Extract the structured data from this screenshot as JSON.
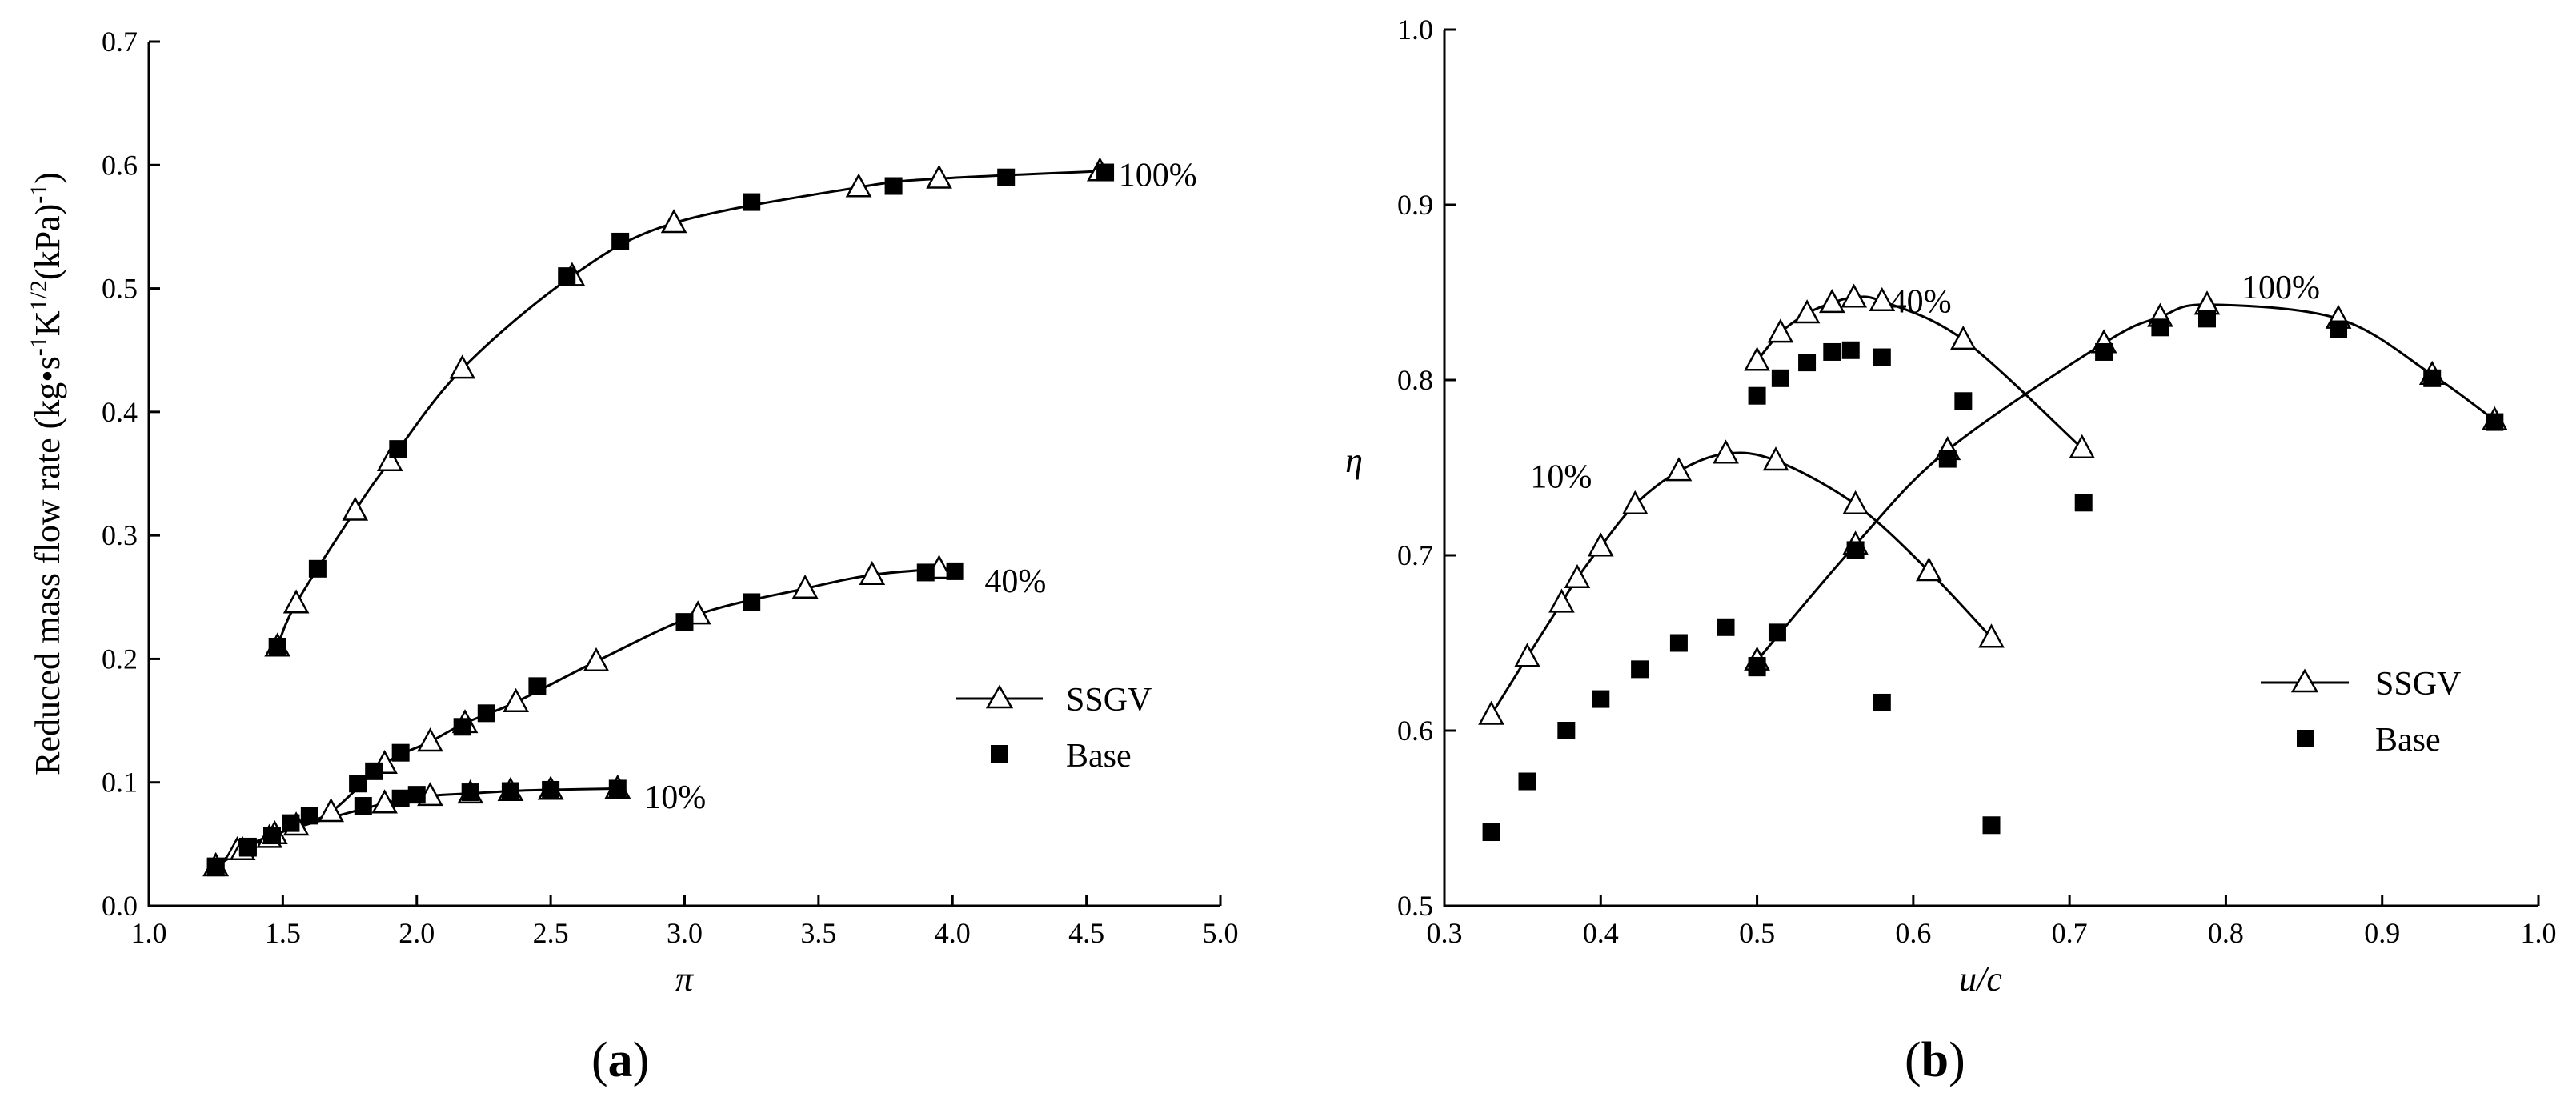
{
  "chart_data": [
    {
      "type": "line",
      "panel_label": {
        "open": "(",
        "letter": "a",
        "close": ")"
      },
      "xlabel": "π",
      "ylabel": {
        "prefix": "Reduced mass flow rate (kg•s",
        "sup1": "-1",
        "mid1": "K",
        "sup2": "1/2",
        "mid2": "(kPa)",
        "sup3": "-1",
        "suffix": ")"
      },
      "xlim": [
        1.0,
        5.0
      ],
      "ylim": [
        0.0,
        0.7
      ],
      "xticks": [
        1.0,
        1.5,
        2.0,
        2.5,
        3.0,
        3.5,
        4.0,
        4.5,
        5.0
      ],
      "yticks": [
        0.0,
        0.1,
        0.2,
        0.3,
        0.4,
        0.5,
        0.6,
        0.7
      ],
      "xtick_labels": [
        "1.0",
        "1.5",
        "2.0",
        "2.5",
        "3.0",
        "3.5",
        "4.0",
        "4.5",
        "5.0"
      ],
      "ytick_labels": [
        "0.0",
        "0.1",
        "0.2",
        "0.3",
        "0.4",
        "0.5",
        "0.6",
        "0.7"
      ],
      "grid": false,
      "legend": {
        "position": "center-right",
        "entries": [
          "SSGV",
          "Base"
        ]
      },
      "series": [
        {
          "name": "SSGV",
          "group": "100%",
          "marker": "open-triangle",
          "curve": true,
          "x": [
            1.48,
            1.55,
            1.77,
            1.9,
            2.17,
            2.58,
            2.96,
            3.65,
            3.95,
            4.55
          ],
          "y": [
            0.21,
            0.245,
            0.32,
            0.36,
            0.435,
            0.51,
            0.553,
            0.582,
            0.589,
            0.595
          ]
        },
        {
          "name": "Base",
          "group": "100%",
          "marker": "filled-square",
          "x": [
            1.48,
            1.63,
            1.93,
            2.56,
            2.76,
            3.25,
            3.78,
            4.2,
            4.57
          ],
          "y": [
            0.21,
            0.273,
            0.37,
            0.51,
            0.538,
            0.57,
            0.583,
            0.59,
            0.594
          ]
        },
        {
          "name": "SSGV",
          "group": "40%",
          "marker": "open-triangle",
          "curve": true,
          "x": [
            1.25,
            1.33,
            1.45,
            1.55,
            1.68,
            1.88,
            2.05,
            2.18,
            2.37,
            2.67,
            3.05,
            3.45,
            3.7,
            3.95
          ],
          "y": [
            0.032,
            0.045,
            0.055,
            0.065,
            0.076,
            0.115,
            0.133,
            0.148,
            0.165,
            0.198,
            0.236,
            0.257,
            0.268,
            0.273
          ]
        },
        {
          "name": "Base",
          "group": "40%",
          "marker": "filled-square",
          "x": [
            1.25,
            1.37,
            1.46,
            1.53,
            1.6,
            1.78,
            1.84,
            1.94,
            2.17,
            2.26,
            2.45,
            3.0,
            3.25,
            3.9,
            4.01
          ],
          "y": [
            0.032,
            0.048,
            0.057,
            0.067,
            0.073,
            0.099,
            0.109,
            0.124,
            0.145,
            0.156,
            0.178,
            0.23,
            0.246,
            0.27,
            0.271
          ]
        },
        {
          "name": "SSGV",
          "group": "10%",
          "marker": "open-triangle",
          "curve": true,
          "x": [
            1.25,
            1.35,
            1.47,
            1.88,
            2.05,
            2.2,
            2.35,
            2.5,
            2.75
          ],
          "y": [
            0.032,
            0.045,
            0.058,
            0.083,
            0.089,
            0.091,
            0.093,
            0.094,
            0.095
          ]
        },
        {
          "name": "Base",
          "group": "10%",
          "marker": "filled-square",
          "x": [
            1.25,
            1.37,
            1.8,
            1.94,
            2.0,
            2.2,
            2.35,
            2.5,
            2.75
          ],
          "y": [
            0.031,
            0.047,
            0.081,
            0.087,
            0.09,
            0.092,
            0.093,
            0.094,
            0.095
          ]
        }
      ],
      "annotations": [
        {
          "text": "100%",
          "x": 4.62,
          "y": 0.592
        },
        {
          "text": "40%",
          "x": 4.12,
          "y": 0.263
        },
        {
          "text": "10%",
          "x": 2.85,
          "y": 0.088
        }
      ]
    },
    {
      "type": "line",
      "panel_label": {
        "open": "(",
        "letter": "b",
        "close": ")"
      },
      "xlabel": "u/c",
      "ylabel": "η",
      "xlim": [
        0.3,
        1.0
      ],
      "ylim": [
        0.5,
        1.0
      ],
      "xticks": [
        0.3,
        0.4,
        0.5,
        0.6,
        0.7,
        0.8,
        0.9,
        1.0
      ],
      "yticks": [
        0.5,
        0.6,
        0.7,
        0.8,
        0.9,
        1.0
      ],
      "xtick_labels": [
        "0.3",
        "0.4",
        "0.5",
        "0.6",
        "0.7",
        "0.8",
        "0.9",
        "1.0"
      ],
      "ytick_labels": [
        "0.5",
        "0.6",
        "0.7",
        "0.8",
        "0.9",
        "1.0"
      ],
      "grid": false,
      "legend": {
        "position": "center-right",
        "entries": [
          "SSGV",
          "Base"
        ]
      },
      "series": [
        {
          "name": "SSGV",
          "group": "10%",
          "marker": "open-triangle",
          "curve": true,
          "x": [
            0.33,
            0.353,
            0.375,
            0.385,
            0.4,
            0.422,
            0.45,
            0.48,
            0.512,
            0.563,
            0.61,
            0.65
          ],
          "y": [
            0.609,
            0.642,
            0.673,
            0.687,
            0.705,
            0.729,
            0.748,
            0.758,
            0.754,
            0.729,
            0.691,
            0.653
          ]
        },
        {
          "name": "Base",
          "group": "10%",
          "marker": "filled-square",
          "x": [
            0.33,
            0.353,
            0.378,
            0.4,
            0.425,
            0.45,
            0.48,
            0.5,
            0.58,
            0.65
          ],
          "y": [
            0.542,
            0.571,
            0.6,
            0.618,
            0.635,
            0.65,
            0.659,
            0.636,
            0.616,
            0.546
          ]
        },
        {
          "name": "SSGV",
          "group": "40%",
          "marker": "open-triangle",
          "curve": true,
          "x": [
            0.5,
            0.515,
            0.532,
            0.548,
            0.562,
            0.58,
            0.632,
            0.708
          ],
          "y": [
            0.811,
            0.827,
            0.838,
            0.844,
            0.847,
            0.845,
            0.823,
            0.761
          ]
        },
        {
          "name": "Base",
          "group": "40%",
          "marker": "filled-square",
          "x": [
            0.5,
            0.515,
            0.532,
            0.548,
            0.56,
            0.58,
            0.632,
            0.709
          ],
          "y": [
            0.791,
            0.801,
            0.81,
            0.816,
            0.817,
            0.813,
            0.788,
            0.73
          ]
        },
        {
          "name": "SSGV",
          "group": "100%",
          "marker": "open-triangle",
          "curve": true,
          "x": [
            0.5,
            0.563,
            0.622,
            0.722,
            0.758,
            0.788,
            0.872,
            0.932,
            0.972
          ],
          "y": [
            0.64,
            0.706,
            0.76,
            0.821,
            0.836,
            0.843,
            0.835,
            0.803,
            0.777
          ]
        },
        {
          "name": "Base",
          "group": "100%",
          "marker": "filled-square",
          "x": [
            0.5,
            0.513,
            0.563,
            0.622,
            0.722,
            0.758,
            0.788,
            0.872,
            0.932,
            0.972
          ],
          "y": [
            0.637,
            0.656,
            0.703,
            0.755,
            0.816,
            0.83,
            0.835,
            0.829,
            0.801,
            0.776
          ]
        }
      ],
      "annotations": [
        {
          "text": "10%",
          "x": 0.355,
          "y": 0.745
        },
        {
          "text": "40%",
          "x": 0.585,
          "y": 0.845
        },
        {
          "text": "100%",
          "x": 0.81,
          "y": 0.853
        }
      ]
    }
  ]
}
